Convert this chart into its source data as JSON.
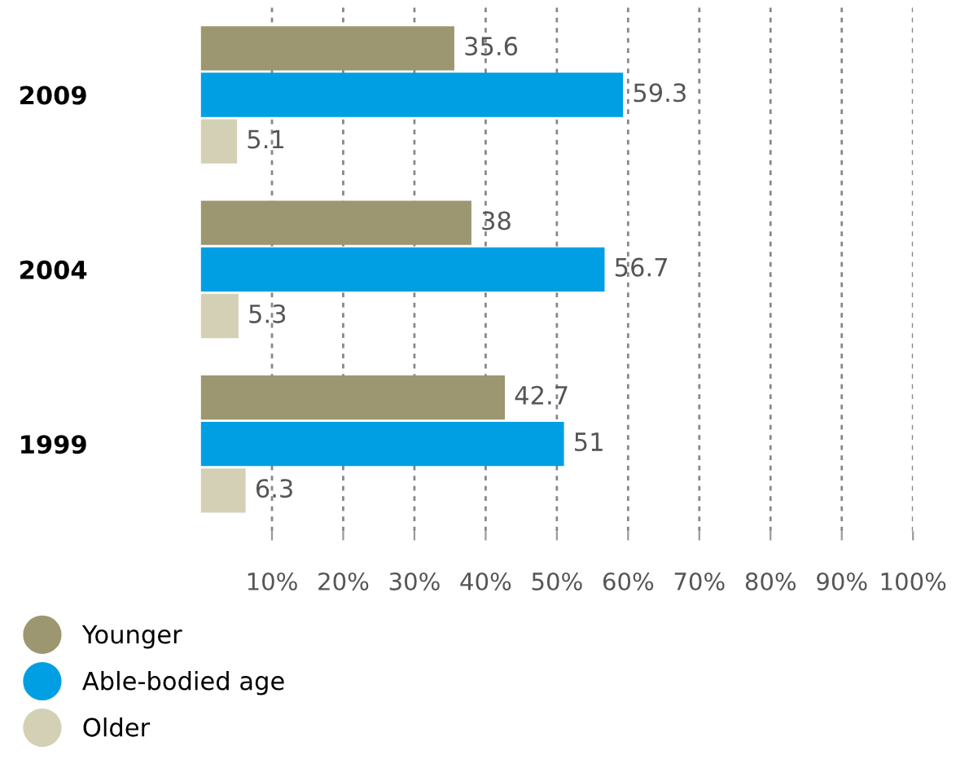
{
  "chart_data": {
    "type": "bar",
    "orientation": "horizontal",
    "categories": [
      "2009",
      "2004",
      "1999"
    ],
    "series": [
      {
        "name": "Younger",
        "color": "#9c9770",
        "values": [
          35.6,
          38,
          42.7
        ]
      },
      {
        "name": "Able-bodied age",
        "color": "#009fe3",
        "values": [
          59.3,
          56.7,
          51
        ]
      },
      {
        "name": "Older",
        "color": "#d3d0b6",
        "values": [
          5.1,
          5.3,
          6.3
        ]
      }
    ],
    "xlim": [
      0,
      100
    ],
    "xticks": [
      {
        "value": 10,
        "label": "10%"
      },
      {
        "value": 20,
        "label": "20%"
      },
      {
        "value": 30,
        "label": "30%"
      },
      {
        "value": 40,
        "label": "40%"
      },
      {
        "value": 50,
        "label": "50%"
      },
      {
        "value": 60,
        "label": "60%"
      },
      {
        "value": 70,
        "label": "70%"
      },
      {
        "value": 80,
        "label": "80%"
      },
      {
        "value": 90,
        "label": "90%"
      },
      {
        "value": 100,
        "label": "100%"
      }
    ],
    "grid": "x",
    "legend": "bottom left",
    "data_labels": true
  }
}
